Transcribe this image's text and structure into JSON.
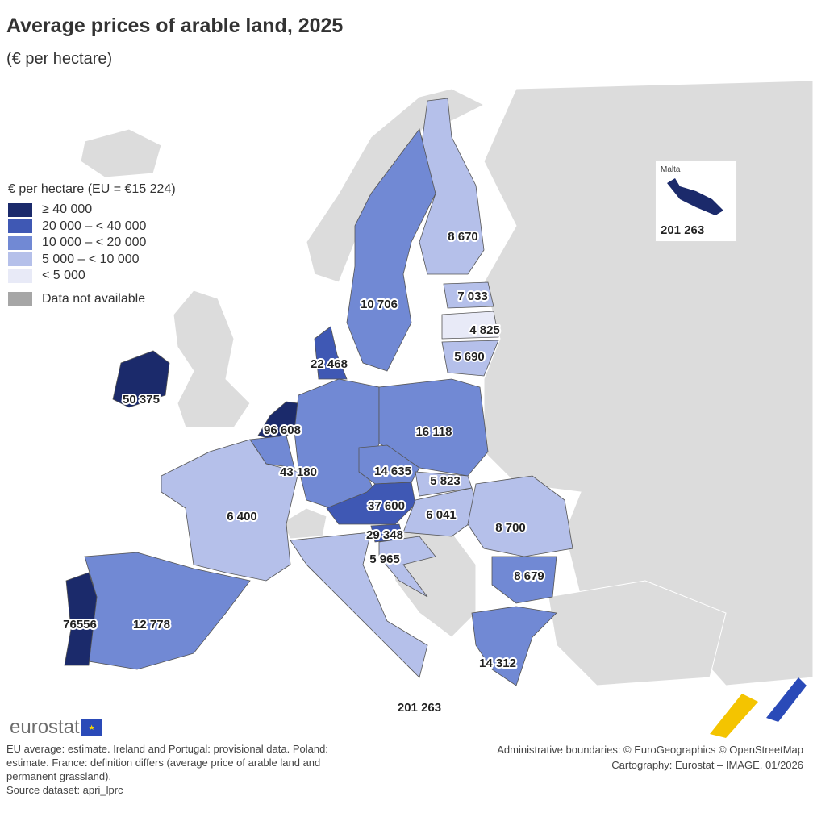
{
  "title": "Average prices of arable land, 2025",
  "subtitle": "(€ per hectare)",
  "legend": {
    "title": "€ per hectare (EU = €15 224)",
    "classes": [
      {
        "label": "≥ 40 000",
        "color": "#1b2a6b"
      },
      {
        "label": "20 000 – < 40 000",
        "color": "#3f58b4"
      },
      {
        "label": "10 000 – < 20 000",
        "color": "#7189d4"
      },
      {
        "label": "5 000 – < 10 000",
        "color": "#b5c0ea"
      },
      {
        "label": "< 5 000",
        "color": "#e8eaf7"
      }
    ],
    "na": {
      "label": "Data not available",
      "color": "#a6a6a6"
    }
  },
  "values": {
    "finland": "8 670",
    "sweden": "10 706",
    "estonia": "7 033",
    "latvia": "4 825",
    "lithuania": "5 690",
    "denmark": "22 468",
    "ireland": "50 375",
    "netherlands": "96 608",
    "belgium": "43 180",
    "poland": "16 118",
    "czechia": "14 635",
    "slovakia": "5 823",
    "austria": "37 600",
    "slovenia": "29 348",
    "croatia": "5 965",
    "hungary": "6 041",
    "romania": "8 700",
    "bulgaria": "8 679",
    "france": "6 400",
    "portugal": "76556",
    "spain": "12 778",
    "greece": "14 312",
    "italy": "201 263"
  },
  "malta": {
    "name": "Malta",
    "value": "201 263"
  },
  "logo": "eurostat",
  "notes": [
    "EU average: estimate. Ireland and Portugal: provisional data. Poland: estimate. France: definition differs (average price of arable land and permanent grassland).",
    "Source dataset: apri_lprc"
  ],
  "credits": [
    "Administrative boundaries: © EuroGeographics © OpenStreetMap",
    "Cartography: Eurostat – IMAGE, 01/2026"
  ]
}
